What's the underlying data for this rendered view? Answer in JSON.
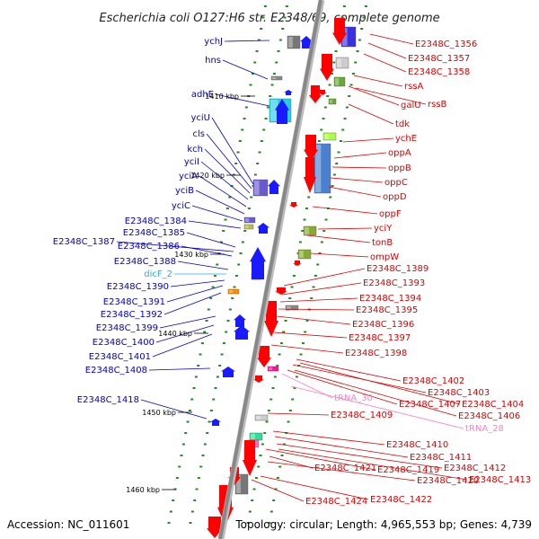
{
  "title": "Escherichia coli O127:H6 str. E2348/69, complete genome",
  "footer": {
    "accession": "Accession: NC_011601",
    "summary": "Topology: circular; Length: 4,965,553 bp; Genes: 4,739"
  },
  "colors": {
    "left_label": "#0000cc",
    "right_label": "#dd0000",
    "rna_label": "#ff80c0",
    "ncrna_label": "#22aaee",
    "backbone": "#888888",
    "tick": "#228b22"
  },
  "scale_labels": [
    "1410 kbp",
    "1420 kbp",
    "1430 kbp",
    "1440 kbp",
    "1450 kbp",
    "1460 kbp"
  ],
  "left_labels": [
    {
      "text": "ychJ",
      "type": "gene"
    },
    {
      "text": "hns",
      "type": "gene"
    },
    {
      "text": "adhE",
      "type": "gene"
    },
    {
      "text": "yciU",
      "type": "gene"
    },
    {
      "text": "cls",
      "type": "gene"
    },
    {
      "text": "kch",
      "type": "gene"
    },
    {
      "text": "yciI",
      "type": "gene"
    },
    {
      "text": "yciA",
      "type": "gene"
    },
    {
      "text": "yciB",
      "type": "gene"
    },
    {
      "text": "yciC",
      "type": "gene"
    },
    {
      "text": "E2348C_1384",
      "type": "gene"
    },
    {
      "text": "E2348C_1385",
      "type": "gene"
    },
    {
      "text": "E2348C_1387",
      "type": "gene"
    },
    {
      "text": "E2348C_1386",
      "type": "gene"
    },
    {
      "text": "E2348C_1388",
      "type": "gene"
    },
    {
      "text": "dicF_2",
      "type": "ncrna"
    },
    {
      "text": "E2348C_1390",
      "type": "gene"
    },
    {
      "text": "E2348C_1391",
      "type": "gene"
    },
    {
      "text": "E2348C_1392",
      "type": "gene"
    },
    {
      "text": "E2348C_1399",
      "type": "gene"
    },
    {
      "text": "E2348C_1400",
      "type": "gene"
    },
    {
      "text": "E2348C_1401",
      "type": "gene"
    },
    {
      "text": "E2348C_1408",
      "type": "gene"
    },
    {
      "text": "E2348C_1418",
      "type": "gene"
    }
  ],
  "right_labels": [
    {
      "text": "E2348C_1356",
      "type": "gene"
    },
    {
      "text": "E2348C_1357",
      "type": "gene"
    },
    {
      "text": "E2348C_1358",
      "type": "gene"
    },
    {
      "text": "rssA",
      "type": "gene"
    },
    {
      "text": "galU",
      "type": "gene"
    },
    {
      "text": "rssB",
      "type": "gene"
    },
    {
      "text": "tdk",
      "type": "gene"
    },
    {
      "text": "ychE",
      "type": "gene"
    },
    {
      "text": "oppA",
      "type": "gene"
    },
    {
      "text": "oppB",
      "type": "gene"
    },
    {
      "text": "oppC",
      "type": "gene"
    },
    {
      "text": "oppD",
      "type": "gene"
    },
    {
      "text": "oppF",
      "type": "gene"
    },
    {
      "text": "yciY",
      "type": "gene"
    },
    {
      "text": "tonB",
      "type": "gene"
    },
    {
      "text": "ompW",
      "type": "gene"
    },
    {
      "text": "E2348C_1389",
      "type": "gene"
    },
    {
      "text": "E2348C_1393",
      "type": "gene"
    },
    {
      "text": "E2348C_1394",
      "type": "gene"
    },
    {
      "text": "E2348C_1395",
      "type": "gene"
    },
    {
      "text": "E2348C_1396",
      "type": "gene"
    },
    {
      "text": "E2348C_1397",
      "type": "gene"
    },
    {
      "text": "E2348C_1398",
      "type": "gene"
    },
    {
      "text": "E2348C_1402",
      "type": "gene"
    },
    {
      "text": "E2348C_1403",
      "type": "gene"
    },
    {
      "text": "tRNA_30",
      "type": "rna"
    },
    {
      "text": "E2348C_1407",
      "type": "gene"
    },
    {
      "text": "E2348C_1404",
      "type": "gene"
    },
    {
      "text": "E2348C_1406",
      "type": "gene"
    },
    {
      "text": "E2348C_1409",
      "type": "gene"
    },
    {
      "text": "tRNA_28",
      "type": "rna"
    },
    {
      "text": "E2348C_1410",
      "type": "gene"
    },
    {
      "text": "E2348C_1411",
      "type": "gene"
    },
    {
      "text": "E2348C_1419",
      "type": "gene"
    },
    {
      "text": "E2348C_1412",
      "type": "gene"
    },
    {
      "text": "E2348C_1421",
      "type": "gene"
    },
    {
      "text": "E2348C_1420",
      "type": "gene"
    },
    {
      "text": "E2348C_1413",
      "type": "gene"
    },
    {
      "text": "E2348C_1424",
      "type": "gene"
    },
    {
      "text": "E2348C_1422",
      "type": "gene"
    }
  ]
}
